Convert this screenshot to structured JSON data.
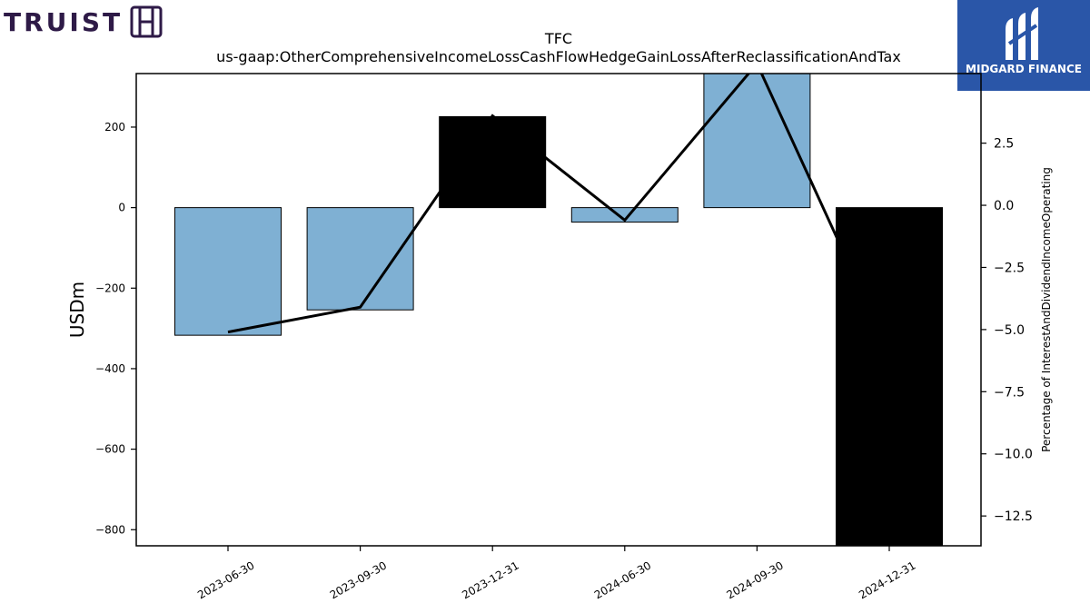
{
  "brand_left": {
    "name": "TRUIST"
  },
  "brand_right": {
    "name": "MIDGARD FINANCE"
  },
  "colors": {
    "bar_positive": "#7fb0d3",
    "bar_negative": "#000000",
    "line": "#000000",
    "brand_left": "#2e1a47",
    "brand_right_bg": "#2a56a8"
  },
  "chart_data": {
    "type": "bar",
    "title": "TFC",
    "subtitle": "us-gaap:OtherComprehensiveIncomeLossCashFlowHedgeGainLossAfterReclassificationAndTax",
    "ylabel": "USDm",
    "y2label": "Percentage of InterestAndDividendIncomeOperating",
    "categories": [
      "2023-06-30",
      "2023-09-30",
      "2023-12-31",
      "2024-06-30",
      "2024-09-30",
      "2024-12-31"
    ],
    "values": [
      -317,
      -254,
      226,
      -36,
      343,
      -840
    ],
    "bar_colors": [
      "#7fb0d3",
      "#7fb0d3",
      "#000000",
      "#7fb0d3",
      "#7fb0d3",
      "#000000"
    ],
    "ylim": [
      -840,
      333
    ],
    "yticks": [
      200,
      0,
      -200,
      -400,
      -600,
      -800
    ],
    "ytick_labels": [
      "200",
      "0",
      "−200",
      "−400",
      "−600",
      "−800"
    ],
    "line_series": {
      "values": [
        -5.1,
        -4.1,
        3.6,
        -0.6,
        5.7,
        -5.9
      ]
    },
    "y2lim": [
      -13.7,
      5.3
    ],
    "y2ticks": [
      2.5,
      0.0,
      -2.5,
      -5.0,
      -7.5,
      -10.0,
      -12.5
    ],
    "y2tick_labels": [
      "2.5",
      "0.0",
      "−2.5",
      "−5.0",
      "−7.5",
      "−10.0",
      "−12.5"
    ],
    "grid": false,
    "legend": "none"
  }
}
